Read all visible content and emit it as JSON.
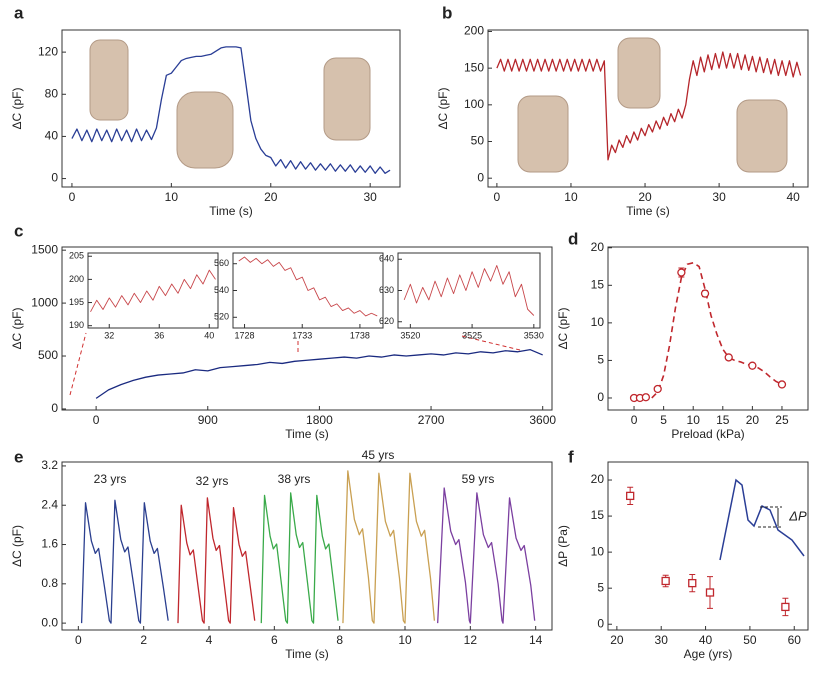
{
  "chart_data": [
    {
      "type": "line",
      "panel": "a",
      "xlabel": "Time (s)",
      "ylabel": "ΔC (pF)",
      "xlim": [
        -1,
        33
      ],
      "ylim": [
        -8,
        141
      ],
      "xticks": [
        0,
        10,
        20,
        30
      ],
      "yticks": [
        0,
        40,
        80,
        120
      ],
      "series": [
        {
          "color": "#2a3e96",
          "x": [
            0,
            0.5,
            1,
            1.5,
            2,
            2.5,
            3,
            3.5,
            4,
            4.5,
            5,
            5.5,
            6,
            6.5,
            7,
            7.5,
            8,
            8.5,
            9,
            9.5,
            10,
            10.5,
            11,
            11.5,
            12,
            12.5,
            13,
            13.5,
            14,
            14.5,
            15,
            15.5,
            16,
            16.5,
            17,
            17.5,
            18,
            18.5,
            19,
            19.5,
            20,
            20.5,
            21,
            21.5,
            22,
            22.5,
            23,
            23.5,
            24,
            24.5,
            25,
            25.5,
            26,
            26.5,
            27,
            27.5,
            28,
            28.5,
            29,
            29.5,
            30,
            30.5,
            31,
            31.5,
            32
          ],
          "values": [
            38,
            47,
            36,
            46,
            35,
            47,
            36,
            46,
            35,
            47,
            36,
            46,
            35,
            47,
            36,
            46,
            37,
            48,
            75,
            98,
            100,
            106,
            112,
            114,
            115,
            116,
            116,
            117,
            118,
            121,
            124,
            125,
            125,
            125,
            124,
            90,
            55,
            38,
            28,
            22,
            20,
            12,
            18,
            10,
            17,
            9,
            16,
            9,
            15,
            8,
            14,
            8,
            14,
            7,
            13,
            7,
            13,
            6,
            12,
            6,
            12,
            5,
            11,
            5,
            8
          ]
        }
      ]
    },
    {
      "type": "line",
      "panel": "b",
      "xlabel": "Time (s)",
      "ylabel": "ΔC (pF)",
      "xlim": [
        -1.2,
        42
      ],
      "ylim": [
        -12,
        202
      ],
      "xticks": [
        0,
        10,
        20,
        30,
        40
      ],
      "yticks": [
        0,
        50,
        100,
        150,
        200
      ],
      "series": [
        {
          "color": "#b5262b",
          "x": [
            0,
            0.5,
            1,
            1.5,
            2,
            2.5,
            3,
            3.5,
            4,
            4.5,
            5,
            5.5,
            6,
            6.5,
            7,
            7.5,
            8,
            8.5,
            9,
            9.5,
            10,
            10.5,
            11,
            11.5,
            12,
            12.5,
            13,
            13.5,
            14,
            14.5,
            15,
            15.5,
            16,
            16.5,
            17,
            17.5,
            18,
            18.5,
            19,
            19.5,
            20,
            20.5,
            21,
            21.5,
            22,
            22.5,
            23,
            23.5,
            24,
            24.5,
            25,
            25.5,
            26,
            26.5,
            27,
            27.5,
            28,
            28.5,
            29,
            29.5,
            30,
            30.5,
            31,
            31.5,
            32,
            32.5,
            33,
            33.5,
            34,
            34.5,
            35,
            35.5,
            36,
            36.5,
            37,
            37.5,
            38,
            38.5,
            39,
            39.5,
            40,
            40.5,
            41
          ],
          "values": [
            150,
            162,
            146,
            162,
            146,
            162,
            146,
            162,
            146,
            162,
            146,
            162,
            146,
            162,
            146,
            162,
            146,
            162,
            146,
            162,
            146,
            162,
            146,
            162,
            146,
            162,
            146,
            162,
            146,
            160,
            25,
            45,
            35,
            52,
            42,
            58,
            48,
            63,
            52,
            68,
            58,
            73,
            63,
            78,
            67,
            83,
            72,
            88,
            77,
            94,
            82,
            100,
            135,
            160,
            140,
            165,
            145,
            168,
            148,
            170,
            150,
            172,
            150,
            170,
            150,
            170,
            148,
            168,
            147,
            166,
            145,
            165,
            144,
            163,
            142,
            162,
            140,
            160,
            140,
            160,
            138,
            158,
            140
          ]
        }
      ]
    },
    {
      "type": "line",
      "panel": "c",
      "xlabel": "Time (s)",
      "ylabel": "ΔC (pF)",
      "xlim": [
        -275,
        3675
      ],
      "ylim": [
        -10,
        1530
      ],
      "xticks": [
        0,
        900,
        1800,
        2700,
        3600
      ],
      "yticks": [
        0,
        500,
        1000,
        1500
      ],
      "series": [
        {
          "color": "#1a2a80",
          "x": [
            0,
            100,
            200,
            300,
            400,
            500,
            600,
            700,
            800,
            900,
            1000,
            1100,
            1200,
            1300,
            1400,
            1500,
            1600,
            1700,
            1800,
            1900,
            2000,
            2100,
            2200,
            2300,
            2400,
            2500,
            2600,
            2700,
            2800,
            2900,
            3000,
            3100,
            3200,
            3300,
            3400,
            3500,
            3600
          ],
          "values": [
            100,
            180,
            230,
            270,
            300,
            320,
            330,
            340,
            370,
            360,
            390,
            400,
            410,
            420,
            440,
            430,
            450,
            460,
            470,
            480,
            490,
            480,
            500,
            490,
            510,
            500,
            510,
            520,
            510,
            530,
            520,
            540,
            530,
            550,
            540,
            560,
            510
          ]
        }
      ]
    },
    {
      "type": "line",
      "xlim": [
        30.3,
        40.7
      ],
      "ylim": [
        189.5,
        205.7
      ],
      "xticks": [
        32,
        36,
        40
      ],
      "yticks": [
        190,
        195,
        200,
        205
      ],
      "series": [
        {
          "color": "#c8474b",
          "x": [
            30.5,
            31,
            31.5,
            32,
            32.5,
            33,
            33.5,
            34,
            34.5,
            35,
            35.5,
            36,
            36.5,
            37,
            37.5,
            38,
            38.5,
            39,
            39.5,
            40,
            40.5
          ],
          "values": [
            193,
            195.5,
            193.5,
            196,
            194,
            196.5,
            194.5,
            197,
            195,
            197.5,
            195.5,
            198.5,
            196.5,
            199,
            197,
            200,
            198,
            201,
            199,
            202,
            200
          ]
        }
      ]
    },
    {
      "type": "line",
      "xlim": [
        1727,
        1740
      ],
      "ylim": [
        512,
        568
      ],
      "xticks": [
        1728,
        1733,
        1738
      ],
      "yticks": [
        520,
        540,
        560
      ],
      "series": [
        {
          "color": "#c8474b",
          "x": [
            1727.5,
            1728,
            1728.5,
            1729,
            1729.5,
            1730,
            1730.5,
            1731,
            1731.5,
            1732,
            1732.5,
            1733,
            1733.5,
            1734,
            1734.5,
            1735,
            1735.5,
            1736,
            1736.5,
            1737,
            1737.5,
            1738,
            1738.5,
            1739,
            1739.5
          ],
          "values": [
            562,
            565,
            561,
            564,
            560,
            563,
            558,
            561,
            555,
            557,
            548,
            550,
            540,
            542,
            533,
            535,
            528,
            530,
            525,
            527,
            523,
            525,
            521,
            523,
            521
          ]
        }
      ]
    },
    {
      "type": "line",
      "xlim": [
        3519,
        3530.5
      ],
      "ylim": [
        618,
        642
      ],
      "xticks": [
        3520,
        3525,
        3530
      ],
      "yticks": [
        620,
        630,
        640
      ],
      "series": [
        {
          "color": "#c8474b",
          "x": [
            3519.5,
            3520,
            3520.5,
            3521,
            3521.5,
            3522,
            3522.5,
            3523,
            3523.5,
            3524,
            3524.5,
            3525,
            3525.5,
            3526,
            3526.5,
            3527,
            3527.5,
            3528,
            3528.5,
            3529,
            3529.5,
            3530
          ],
          "values": [
            627,
            632,
            626,
            631,
            627,
            633,
            628,
            634,
            629,
            635,
            630,
            636,
            631,
            637,
            633,
            638,
            632,
            636,
            628,
            632,
            624,
            622
          ]
        }
      ]
    },
    {
      "type": "scatter",
      "panel": "d",
      "xlabel": "Preload (kPa)",
      "ylabel": "ΔC (pF)",
      "xlim": [
        -4.4,
        29.4
      ],
      "ylim": [
        -1.6,
        20.1
      ],
      "xticks": [
        0,
        5,
        10,
        15,
        20,
        25
      ],
      "yticks": [
        0,
        5,
        10,
        15,
        20
      ],
      "series": [
        {
          "color": "#c0272d",
          "line": "dashed",
          "x": [
            3,
            4,
            5,
            6,
            7,
            8,
            9,
            10,
            11,
            12,
            13,
            14,
            15,
            16,
            17,
            18,
            19,
            20,
            21,
            22,
            23,
            24,
            25
          ],
          "values": [
            0,
            0.8,
            3,
            7,
            12,
            16,
            17.8,
            18,
            17.5,
            14.5,
            11,
            8.5,
            6.5,
            5.4,
            5,
            4.8,
            4.5,
            4.3,
            4,
            3.5,
            2.8,
            2.2,
            1.8
          ]
        },
        {
          "color": "#c0272d",
          "marker": "circle",
          "x": [
            0,
            1,
            2,
            4,
            8,
            12,
            16,
            20,
            25
          ],
          "values": [
            0,
            0,
            0.1,
            1.2,
            16.7,
            13.9,
            5.4,
            4.3,
            1.8
          ],
          "errors": [
            0.2,
            0.2,
            0.2,
            0.3,
            0.6,
            0.4,
            0.3,
            0.3,
            0.3
          ]
        }
      ]
    },
    {
      "type": "line",
      "panel": "e",
      "xlabel": "Time (s)",
      "ylabel": "ΔC (pF)",
      "xlim": [
        -0.5,
        14.5
      ],
      "ylim": [
        -0.14,
        3.28
      ],
      "xticks": [
        0,
        2,
        4,
        6,
        8,
        10,
        12,
        14
      ],
      "yticks": [
        {
          "value": 0,
          "label": "0.0"
        },
        0.8,
        1.6,
        2.4,
        3.2
      ],
      "annotations": [
        {
          "text": "23 yrs"
        },
        {
          "text": "32 yrs"
        },
        {
          "text": "38 yrs"
        },
        {
          "text": "45 yrs"
        },
        {
          "text": "59 yrs"
        }
      ],
      "series": [
        {
          "color": "#2b3f8f",
          "x": [
            0.1,
            0.22,
            0.4,
            0.52,
            0.62,
            0.8,
            0.95,
            1.0,
            1.12,
            1.3,
            1.42,
            1.52,
            1.7,
            1.85,
            1.9,
            2.02,
            2.2,
            2.32,
            2.42,
            2.6,
            2.75
          ],
          "values": [
            0,
            2.45,
            1.67,
            1.42,
            1.52,
            0.74,
            0.05,
            0,
            2.5,
            1.7,
            1.45,
            1.55,
            0.75,
            0.05,
            0,
            2.45,
            1.67,
            1.42,
            1.52,
            0.74,
            0.05
          ]
        },
        {
          "color": "#c0272d",
          "x": [
            3.05,
            3.15,
            3.32,
            3.42,
            3.52,
            3.67,
            3.8,
            3.85,
            3.95,
            4.12,
            4.22,
            4.32,
            4.47,
            4.6,
            4.65,
            4.75,
            4.92,
            5.02,
            5.12,
            5.27,
            5.4
          ],
          "values": [
            0,
            2.4,
            1.63,
            1.39,
            1.49,
            0.72,
            0.05,
            0,
            2.55,
            1.73,
            1.48,
            1.58,
            0.77,
            0.05,
            0,
            2.35,
            1.6,
            1.36,
            1.46,
            0.71,
            0.05
          ]
        },
        {
          "color": "#3aaa4a",
          "x": [
            5.6,
            5.7,
            5.87,
            5.97,
            6.07,
            6.22,
            6.35,
            6.4,
            6.5,
            6.67,
            6.77,
            6.87,
            7.02,
            7.15,
            7.2,
            7.3,
            7.47,
            7.57,
            7.67,
            7.82,
            7.95
          ],
          "values": [
            0,
            2.6,
            1.77,
            1.51,
            1.61,
            0.78,
            0.05,
            0,
            2.65,
            1.8,
            1.54,
            1.64,
            0.8,
            0.05,
            0,
            2.6,
            1.77,
            1.51,
            1.61,
            0.78,
            0.05
          ]
        },
        {
          "color": "#c9a052",
          "x": [
            8.1,
            8.25,
            8.45,
            8.6,
            8.7,
            8.88,
            9.0,
            9.05,
            9.2,
            9.4,
            9.55,
            9.65,
            9.83,
            9.95,
            10.0,
            10.15,
            10.35,
            10.5,
            10.6,
            10.78,
            10.9
          ],
          "values": [
            0,
            3.1,
            2.11,
            1.8,
            1.92,
            0.93,
            0.05,
            0,
            3.05,
            2.07,
            1.77,
            1.89,
            0.92,
            0.05,
            0,
            3.05,
            2.07,
            1.77,
            1.89,
            0.92,
            0.05
          ]
        },
        {
          "color": "#7b3fa0",
          "x": [
            11.0,
            11.2,
            11.4,
            11.55,
            11.65,
            11.85,
            11.97,
            12.0,
            12.2,
            12.4,
            12.55,
            12.65,
            12.85,
            12.97,
            13.0,
            13.2,
            13.4,
            13.55,
            13.65,
            13.85,
            13.97
          ],
          "values": [
            0,
            2.75,
            1.87,
            1.6,
            1.7,
            0.83,
            0.05,
            0,
            2.65,
            1.8,
            1.54,
            1.64,
            0.8,
            0.05,
            0,
            2.55,
            1.73,
            1.48,
            1.58,
            0.77,
            0.05
          ]
        }
      ]
    },
    {
      "type": "scatter",
      "panel": "f",
      "xlabel": "Age (yrs)",
      "ylabel": "ΔP  (Pa)",
      "xlim": [
        18,
        63.1
      ],
      "ylim": [
        -0.8,
        22.5
      ],
      "xticks": [
        20,
        30,
        40,
        50,
        60
      ],
      "yticks": [
        0,
        5,
        10,
        15,
        20
      ],
      "annotations": [
        {
          "text": "ΔP"
        }
      ],
      "series": [
        {
          "color": "#c0272d",
          "marker": "square",
          "x": [
            23,
            31,
            37,
            41,
            58
          ],
          "values": [
            17.8,
            6,
            5.7,
            4.4,
            2.4
          ],
          "errors": [
            1.2,
            0.8,
            1.2,
            2.2,
            1.2
          ]
        }
      ]
    }
  ]
}
